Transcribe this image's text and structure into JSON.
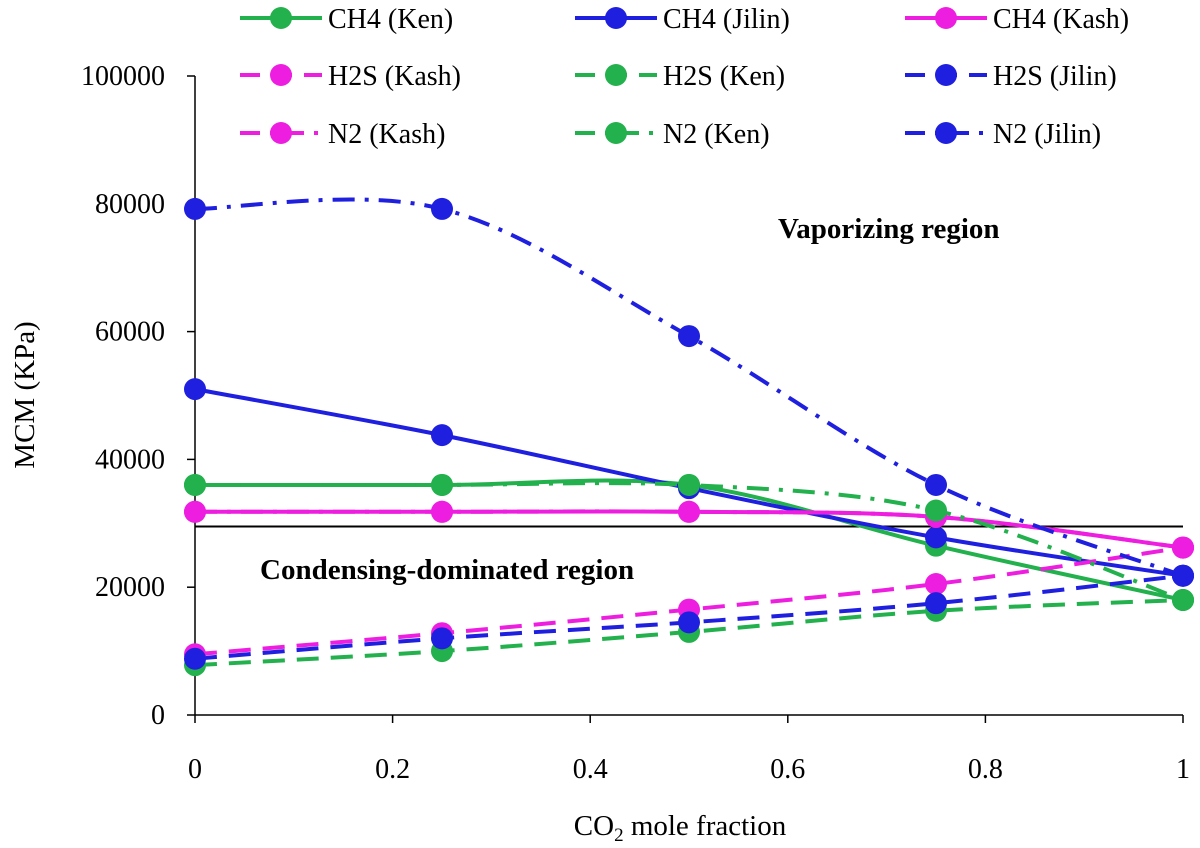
{
  "chart_data": {
    "type": "line",
    "xlabel_main": "CO",
    "xlabel_sub": "2",
    "xlabel_rest": " mole fraction",
    "ylabel": "MCM (KPa)",
    "xlim": [
      0,
      1
    ],
    "ylim": [
      0,
      100000
    ],
    "x_ticks": [
      "0",
      "0.2",
      "0.4",
      "0.6",
      "0.8",
      "1"
    ],
    "y_ticks": [
      "0",
      "20000",
      "40000",
      "60000",
      "80000",
      "100000"
    ],
    "x": [
      0,
      0.25,
      0.5,
      0.75,
      1
    ],
    "threshold": 29500,
    "annotations": {
      "vaporizing": "Vaporizing region",
      "condensing": "Condensing-dominated region"
    },
    "series": [
      {
        "name": "CH4 (Ken)",
        "color": "#22b14c",
        "style": "solid",
        "values": [
          36000,
          36000,
          36000,
          26500,
          18000
        ]
      },
      {
        "name": "CH4 (Jilin)",
        "color": "#1f1fe0",
        "style": "solid",
        "values": [
          51000,
          43800,
          35500,
          27800,
          21800
        ]
      },
      {
        "name": "CH4 (Kash)",
        "color": "#ee1ee0",
        "style": "solid",
        "values": [
          31800,
          31800,
          31800,
          31000,
          26200
        ]
      },
      {
        "name": "H2S (Kash)",
        "color": "#ee1ee0",
        "style": "dashed",
        "values": [
          9500,
          12800,
          16500,
          20500,
          26200
        ]
      },
      {
        "name": "H2S (Ken)",
        "color": "#22b14c",
        "style": "dashed",
        "values": [
          7800,
          10000,
          13000,
          16300,
          18000
        ]
      },
      {
        "name": "H2S (Jilin)",
        "color": "#1f1fe0",
        "style": "dashed",
        "values": [
          8800,
          12000,
          14500,
          17500,
          21800
        ]
      },
      {
        "name": "N2 (Kash)",
        "color": "#ee1ee0",
        "style": "dashdot",
        "values": [
          31800,
          31800,
          31800,
          31000,
          26200
        ]
      },
      {
        "name": "N2 (Ken)",
        "color": "#22b14c",
        "style": "dashdot",
        "values": [
          36000,
          36000,
          36000,
          32000,
          18000
        ]
      },
      {
        "name": "N2 (Jilin)",
        "color": "#1f1fe0",
        "style": "dashdot",
        "values": [
          79200,
          79200,
          59300,
          36000,
          21800
        ]
      }
    ]
  }
}
